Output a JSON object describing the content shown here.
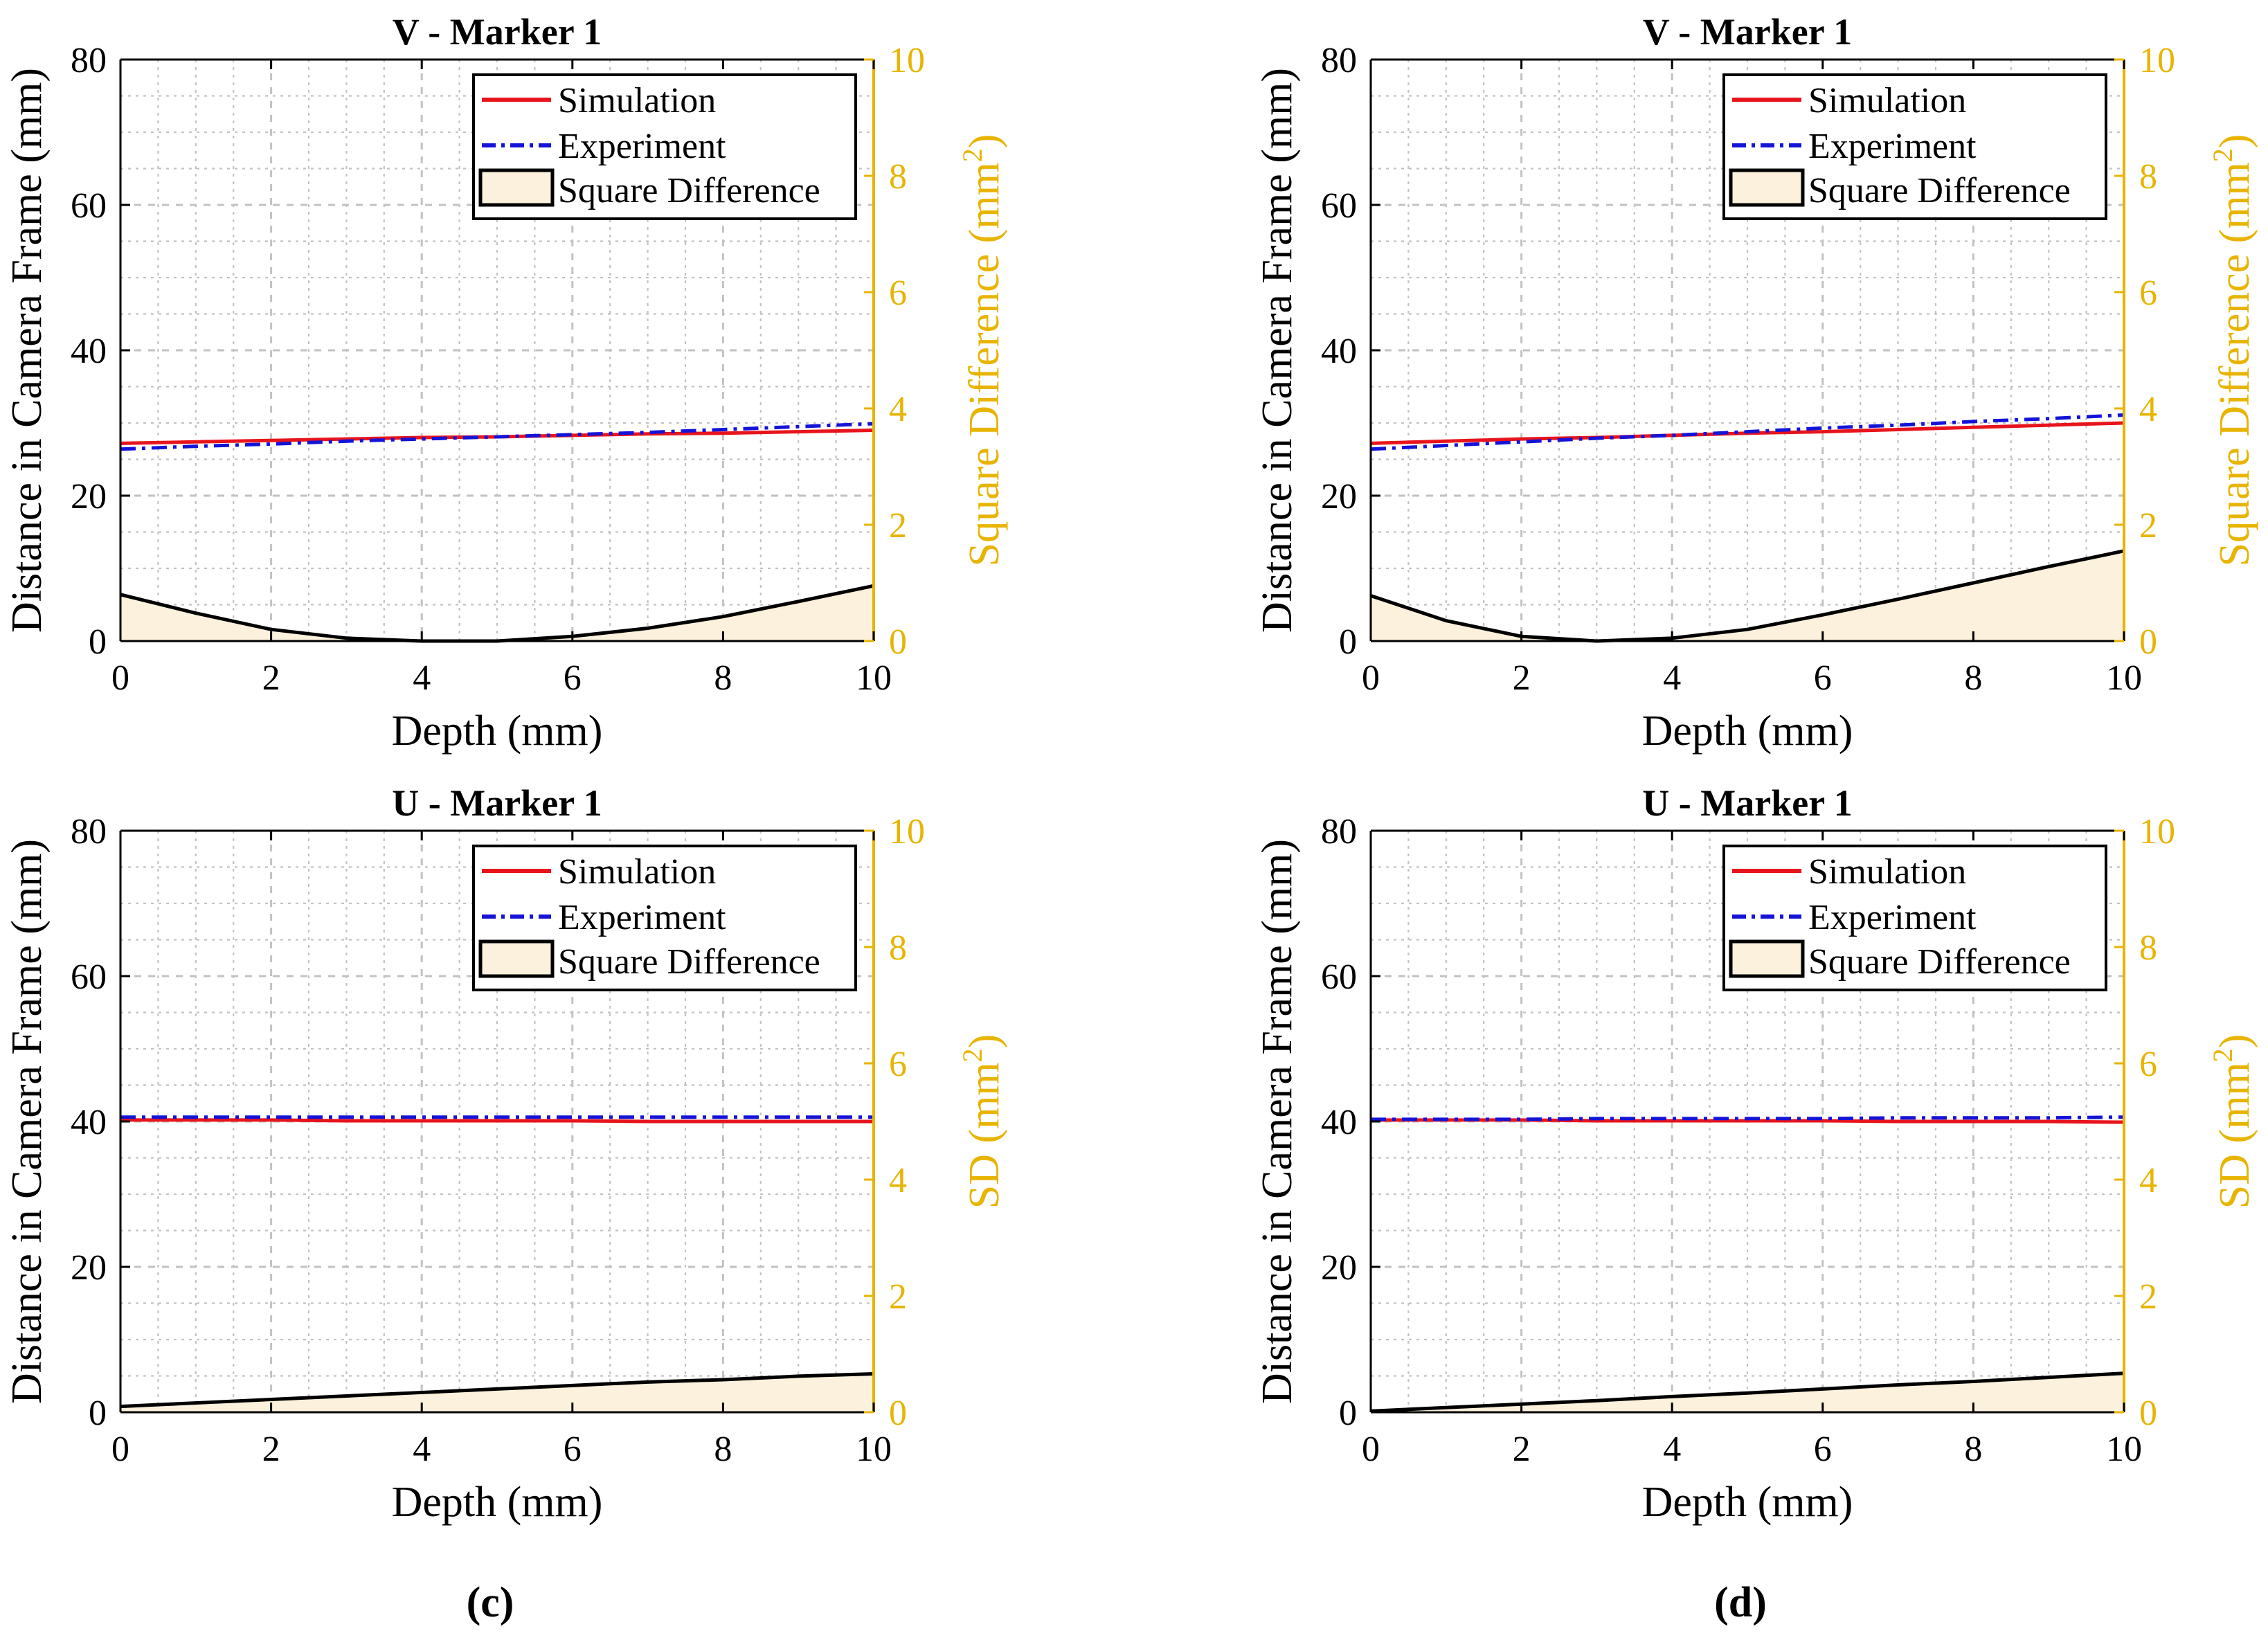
{
  "chart_data": [
    {
      "type": "line",
      "title": "V - Marker 1",
      "xlabel": "Depth (mm)",
      "ylabel": "Distance in Camera Frame (mm)",
      "y2label": "Square Difference (mm",
      "y2label_sup": "2",
      "y2label_end": ")",
      "xlim": [
        0,
        10
      ],
      "ylim": [
        0,
        80
      ],
      "y2lim": [
        0,
        10
      ],
      "xticks": [
        "0",
        "2",
        "4",
        "6",
        "8",
        "10"
      ],
      "yticks": [
        "0",
        "20",
        "40",
        "60",
        "80"
      ],
      "y2ticks": [
        "0",
        "2",
        "4",
        "6",
        "8",
        "10"
      ],
      "grid": true,
      "legend": [
        "Simulation",
        "Experiment",
        "Square Difference"
      ],
      "legend_position": "top-right",
      "x": [
        0,
        1,
        2,
        3,
        4,
        5,
        6,
        7,
        8,
        9,
        10
      ],
      "series": [
        {
          "name": "Simulation",
          "axis": "left",
          "color": "#e8141c",
          "values": [
            27.2,
            27.4,
            27.6,
            27.8,
            28.0,
            28.1,
            28.3,
            28.5,
            28.6,
            28.8,
            29.0
          ]
        },
        {
          "name": "Experiment",
          "axis": "left",
          "color": "#1414d8",
          "values": [
            26.4,
            26.8,
            27.1,
            27.5,
            27.8,
            28.1,
            28.4,
            28.7,
            29.1,
            29.5,
            29.9
          ]
        },
        {
          "name": "Square Difference",
          "axis": "right",
          "color": "#000000",
          "fill": "#fbf1dc",
          "values": [
            0.8,
            0.48,
            0.2,
            0.05,
            0.0,
            0.0,
            0.08,
            0.22,
            0.42,
            0.68,
            0.95
          ]
        }
      ],
      "panel_label": ""
    },
    {
      "type": "line",
      "title": "V - Marker 1",
      "xlabel": "Depth (mm)",
      "ylabel": "Distance in Camera Frame (mm)",
      "y2label": "Square Difference (mm",
      "y2label_sup": "2",
      "y2label_end": ")",
      "xlim": [
        0,
        10
      ],
      "ylim": [
        0,
        80
      ],
      "y2lim": [
        0,
        10
      ],
      "xticks": [
        "0",
        "2",
        "4",
        "6",
        "8",
        "10"
      ],
      "yticks": [
        "0",
        "20",
        "40",
        "60",
        "80"
      ],
      "y2ticks": [
        "0",
        "2",
        "4",
        "6",
        "8",
        "10"
      ],
      "grid": true,
      "legend": [
        "Simulation",
        "Experiment",
        "Square Difference"
      ],
      "legend_position": "top-right",
      "x": [
        0,
        1,
        2,
        3,
        4,
        5,
        6,
        7,
        8,
        9,
        10
      ],
      "series": [
        {
          "name": "Simulation",
          "axis": "left",
          "color": "#e8141c",
          "values": [
            27.2,
            27.5,
            27.8,
            28.0,
            28.3,
            28.6,
            28.8,
            29.1,
            29.4,
            29.7,
            30.0
          ]
        },
        {
          "name": "Experiment",
          "axis": "left",
          "color": "#1414d8",
          "values": [
            26.4,
            26.9,
            27.4,
            27.9,
            28.3,
            28.8,
            29.3,
            29.7,
            30.2,
            30.6,
            31.1
          ]
        },
        {
          "name": "Square Difference",
          "axis": "right",
          "color": "#000000",
          "fill": "#fbf1dc",
          "values": [
            0.78,
            0.35,
            0.08,
            0.0,
            0.05,
            0.2,
            0.45,
            0.72,
            1.0,
            1.28,
            1.55
          ]
        }
      ],
      "panel_label": ""
    },
    {
      "type": "line",
      "title": "U - Marker 1",
      "xlabel": "Depth (mm)",
      "ylabel": "Distance in Camera Frame (mm)",
      "y2label": "SD (mm",
      "y2label_sup": "2",
      "y2label_end": ")",
      "xlim": [
        0,
        10
      ],
      "ylim": [
        0,
        80
      ],
      "y2lim": [
        0,
        10
      ],
      "xticks": [
        "0",
        "2",
        "4",
        "6",
        "8",
        "10"
      ],
      "yticks": [
        "0",
        "20",
        "40",
        "60",
        "80"
      ],
      "y2ticks": [
        "0",
        "2",
        "4",
        "6",
        "8",
        "10"
      ],
      "grid": true,
      "legend": [
        "Simulation",
        "Experiment",
        "Square Difference"
      ],
      "legend_position": "top-right",
      "x": [
        0,
        1,
        2,
        3,
        4,
        5,
        6,
        7,
        8,
        9,
        10
      ],
      "series": [
        {
          "name": "Simulation",
          "axis": "left",
          "color": "#e8141c",
          "values": [
            40.2,
            40.2,
            40.2,
            40.1,
            40.1,
            40.1,
            40.1,
            40.0,
            40.0,
            40.0,
            40.0
          ]
        },
        {
          "name": "Experiment",
          "axis": "left",
          "color": "#1414d8",
          "values": [
            40.6,
            40.6,
            40.6,
            40.6,
            40.6,
            40.6,
            40.6,
            40.6,
            40.6,
            40.6,
            40.6
          ]
        },
        {
          "name": "Square Difference",
          "axis": "right",
          "color": "#000000",
          "fill": "#fbf1dc",
          "values": [
            0.1,
            0.16,
            0.22,
            0.28,
            0.34,
            0.4,
            0.46,
            0.52,
            0.56,
            0.62,
            0.66
          ]
        }
      ],
      "panel_label": "(c)"
    },
    {
      "type": "line",
      "title": "U - Marker 1",
      "xlabel": "Depth (mm)",
      "ylabel": "Distance in Camera Frame (mm)",
      "y2label": "SD (mm",
      "y2label_sup": "2",
      "y2label_end": ")",
      "xlim": [
        0,
        10
      ],
      "ylim": [
        0,
        80
      ],
      "y2lim": [
        0,
        10
      ],
      "xticks": [
        "0",
        "2",
        "4",
        "6",
        "8",
        "10"
      ],
      "yticks": [
        "0",
        "20",
        "40",
        "60",
        "80"
      ],
      "y2ticks": [
        "0",
        "2",
        "4",
        "6",
        "8",
        "10"
      ],
      "grid": true,
      "legend": [
        "Simulation",
        "Experiment",
        "Square Difference"
      ],
      "legend_position": "top-right",
      "x": [
        0,
        1,
        2,
        3,
        4,
        5,
        6,
        7,
        8,
        9,
        10
      ],
      "series": [
        {
          "name": "Simulation",
          "axis": "left",
          "color": "#e8141c",
          "values": [
            40.2,
            40.2,
            40.2,
            40.1,
            40.1,
            40.1,
            40.1,
            40.0,
            40.0,
            40.0,
            39.9
          ]
        },
        {
          "name": "Experiment",
          "axis": "left",
          "color": "#1414d8",
          "values": [
            40.3,
            40.3,
            40.3,
            40.4,
            40.4,
            40.4,
            40.4,
            40.5,
            40.5,
            40.5,
            40.6
          ]
        },
        {
          "name": "Square Difference",
          "axis": "right",
          "color": "#000000",
          "fill": "#fbf1dc",
          "values": [
            0.02,
            0.08,
            0.14,
            0.2,
            0.27,
            0.33,
            0.4,
            0.47,
            0.53,
            0.6,
            0.67
          ]
        }
      ],
      "panel_label": "(d)"
    }
  ]
}
